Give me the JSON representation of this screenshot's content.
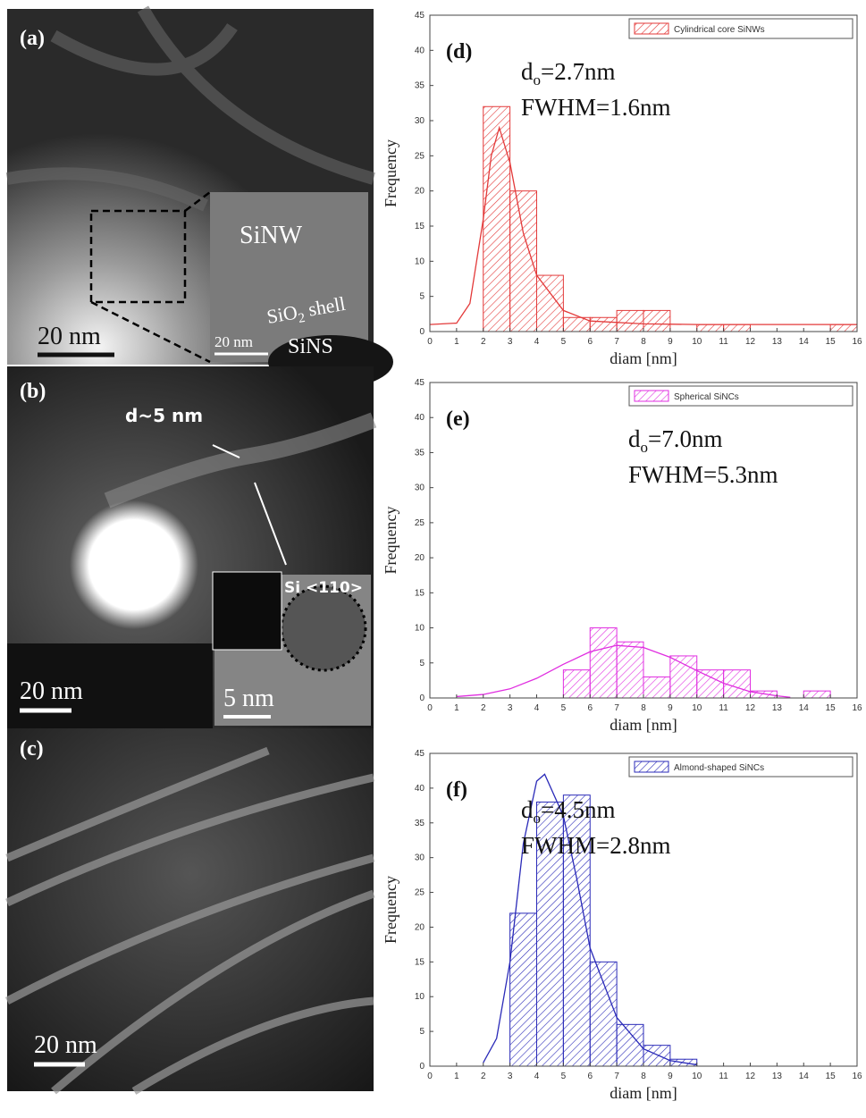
{
  "panels": {
    "a": {
      "label": "(a)",
      "scale": "20 nm",
      "inset_scale": "20 nm",
      "nanowire": "SiNW",
      "shell": {
        "base": "SiO",
        "sub": "2",
        "rest": " shell"
      },
      "sphere": "SiNS"
    },
    "b": {
      "label": "(b)",
      "diameter": "d~5 nm",
      "orientation": "Si <110>",
      "scale": "20 nm",
      "inset_scale": "5 nm"
    },
    "c": {
      "label": "(c)",
      "scale": "20 nm"
    }
  },
  "chart_data": [
    {
      "type": "histogram",
      "panel_label": "(d)",
      "x_label": "diam [nm]",
      "y_label": "Frequency",
      "annotation": {
        "symbol": "d",
        "subscript": "o",
        "value": "=2.7nm",
        "fwhm": "FWHM=1.6nm"
      },
      "bins": [
        0,
        1,
        2,
        3,
        4,
        5,
        6,
        7,
        8,
        9,
        10,
        11,
        12,
        13,
        14,
        15,
        16
      ],
      "series": [
        {
          "name": "Cylindrical core SiNWs",
          "color": "#e33a3a",
          "values": [
            0,
            0,
            32,
            20,
            8,
            2,
            2,
            3,
            3,
            0,
            1,
            1,
            0,
            0,
            0,
            1
          ]
        }
      ],
      "fit": {
        "x": [
          0,
          1,
          1.5,
          2,
          2.3,
          2.6,
          3,
          3.5,
          4,
          5,
          6,
          8,
          10,
          16
        ],
        "y": [
          1,
          1.2,
          4,
          16,
          25,
          29,
          24,
          14,
          8,
          3,
          1.5,
          1.1,
          1,
          1
        ]
      },
      "xlim": [
        0,
        16
      ],
      "ylim": [
        0,
        45
      ],
      "xticks": [
        0,
        1,
        2,
        3,
        4,
        5,
        6,
        7,
        8,
        9,
        10,
        11,
        12,
        13,
        14,
        15,
        16
      ],
      "yticks": [
        0,
        5,
        10,
        15,
        20,
        25,
        30,
        35,
        40,
        45
      ],
      "legend": "top-right"
    },
    {
      "type": "histogram",
      "panel_label": "(e)",
      "x_label": "diam [nm]",
      "y_label": "Frequency",
      "annotation": {
        "symbol": "d",
        "subscript": "o",
        "value": "=7.0nm",
        "fwhm": "FWHM=5.3nm"
      },
      "bins": [
        0,
        1,
        2,
        3,
        4,
        5,
        6,
        7,
        8,
        9,
        10,
        11,
        12,
        13,
        14,
        15,
        16
      ],
      "series": [
        {
          "name": "Spherical SiNCs",
          "color": "#e02ee0",
          "values": [
            0,
            0,
            0,
            0,
            0,
            4,
            10,
            8,
            3,
            6,
            4,
            4,
            1,
            0,
            1,
            0
          ]
        }
      ],
      "fit": {
        "x": [
          1,
          2,
          3,
          4,
          5,
          6,
          7,
          8,
          9,
          10,
          11,
          12,
          13,
          13.5
        ],
        "y": [
          0.2,
          0.5,
          1.3,
          2.8,
          4.8,
          6.6,
          7.5,
          7.2,
          5.8,
          3.9,
          2.1,
          0.9,
          0.3,
          0.1
        ]
      },
      "xlim": [
        0,
        16
      ],
      "ylim": [
        0,
        45
      ],
      "xticks": [
        0,
        1,
        2,
        3,
        4,
        5,
        6,
        7,
        8,
        9,
        10,
        11,
        12,
        13,
        14,
        15,
        16
      ],
      "yticks": [
        0,
        5,
        10,
        15,
        20,
        25,
        30,
        35,
        40,
        45
      ],
      "legend": "top-right"
    },
    {
      "type": "histogram",
      "panel_label": "(f)",
      "x_label": "diam [nm]",
      "y_label": "Frequency",
      "annotation": {
        "symbol": "d",
        "subscript": "o",
        "value": "=4.5nm",
        "fwhm": "FWHM=2.8nm"
      },
      "bins": [
        0,
        1,
        2,
        3,
        4,
        5,
        6,
        7,
        8,
        9,
        10,
        11,
        12,
        13,
        14,
        15,
        16
      ],
      "series": [
        {
          "name": "Almond-shaped SiNCs",
          "color": "#2a2ab8",
          "values": [
            0,
            0,
            0,
            22,
            38,
            39,
            15,
            6,
            3,
            1,
            0,
            0,
            0,
            0,
            0,
            0
          ]
        }
      ],
      "fit": {
        "x": [
          2,
          2.5,
          3,
          3.5,
          4,
          4.3,
          5,
          5.5,
          6,
          7,
          8,
          9,
          10
        ],
        "y": [
          0.5,
          4,
          15,
          32,
          41,
          42,
          36,
          27,
          17,
          7,
          2.5,
          0.8,
          0.2
        ]
      },
      "xlim": [
        0,
        16
      ],
      "ylim": [
        0,
        45
      ],
      "xticks": [
        0,
        1,
        2,
        3,
        4,
        5,
        6,
        7,
        8,
        9,
        10,
        11,
        12,
        13,
        14,
        15,
        16
      ],
      "yticks": [
        0,
        5,
        10,
        15,
        20,
        25,
        30,
        35,
        40,
        45
      ],
      "legend": "top-right"
    }
  ]
}
